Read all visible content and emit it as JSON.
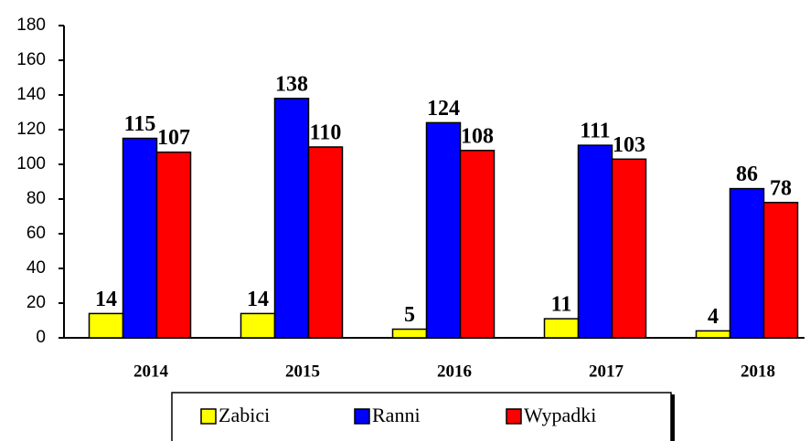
{
  "chart_data": {
    "type": "bar",
    "categories": [
      "2014",
      "2015",
      "2016",
      "2017",
      "2018"
    ],
    "series": [
      {
        "name": "Zabici",
        "color": "#ffff00",
        "values": [
          14,
          14,
          5,
          11,
          4
        ]
      },
      {
        "name": "Ranni",
        "color": "#0000ff",
        "values": [
          115,
          138,
          124,
          111,
          86
        ]
      },
      {
        "name": "Wypadki",
        "color": "#ff0000",
        "values": [
          107,
          110,
          108,
          103,
          78
        ]
      }
    ],
    "ylim": [
      0,
      180
    ],
    "yticks": [
      0,
      20,
      40,
      60,
      80,
      100,
      120,
      140,
      160,
      180
    ],
    "grid": false,
    "legend": "bottom"
  }
}
